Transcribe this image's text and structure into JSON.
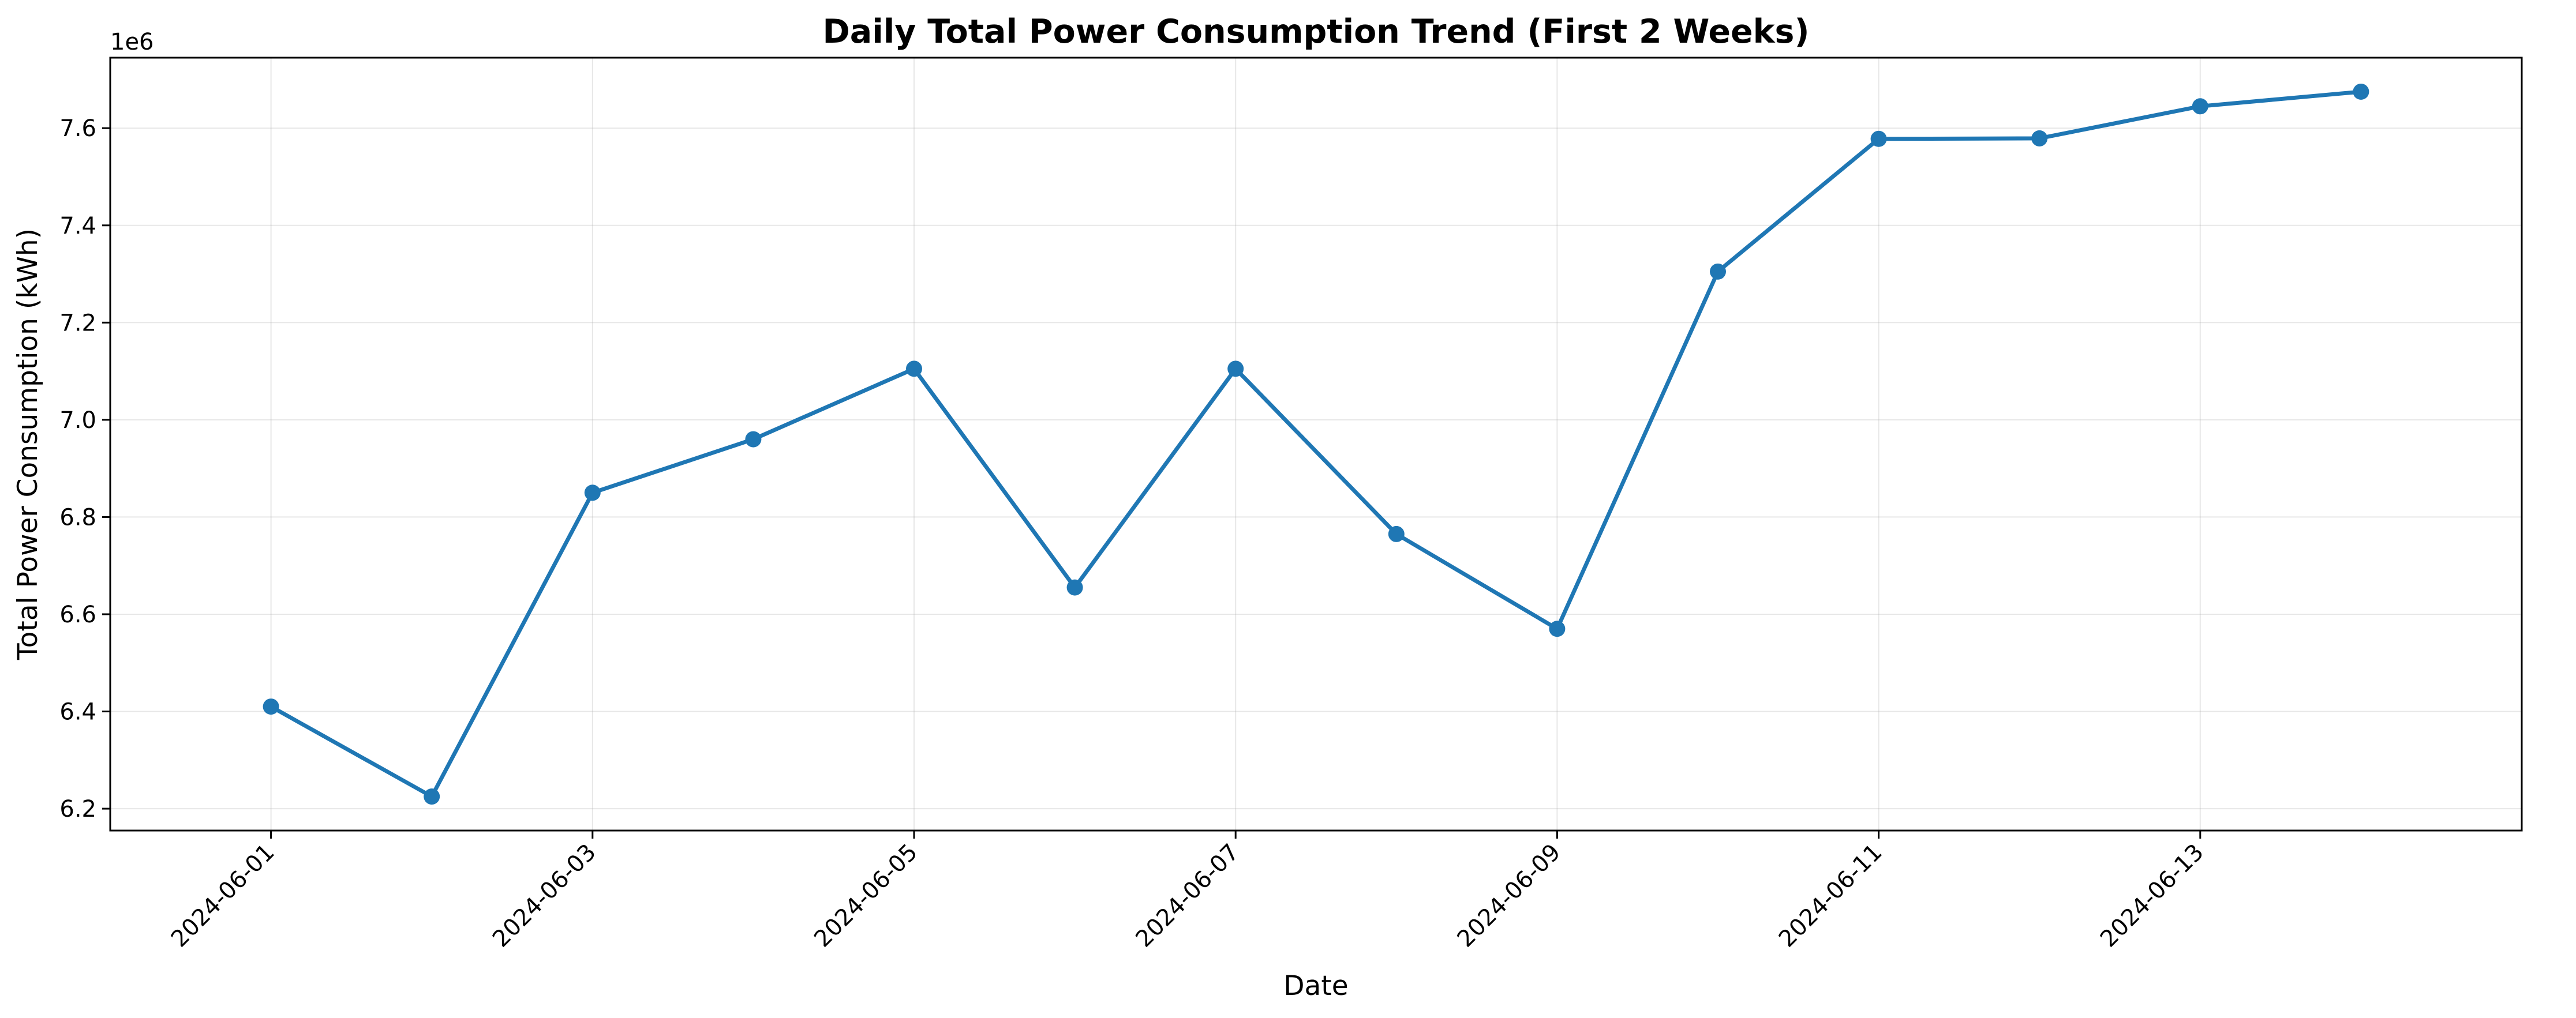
{
  "chart_data": {
    "type": "line",
    "title": "Daily Total Power Consumption Trend (First 2 Weeks)",
    "xlabel": "Date",
    "ylabel": "Total Power Consumption (kWh)",
    "y_offset_label": "1e6",
    "x": [
      "2024-06-01",
      "2024-06-02",
      "2024-06-03",
      "2024-06-04",
      "2024-06-05",
      "2024-06-06",
      "2024-06-07",
      "2024-06-08",
      "2024-06-09",
      "2024-06-10",
      "2024-06-11",
      "2024-06-12",
      "2024-06-13",
      "2024-06-14"
    ],
    "series": [
      {
        "values": [
          6410000,
          6225000,
          6850000,
          6960000,
          7105000,
          6655000,
          7105000,
          6765000,
          6570000,
          7305000,
          7578000,
          7579000,
          7645000,
          7675000
        ],
        "color": "#1f77b4"
      }
    ],
    "xlim": [
      "2024-05-31",
      "2024-06-15"
    ],
    "ylim": [
      6155000,
      7745000
    ],
    "x_ticks": [
      "2024-06-01",
      "2024-06-03",
      "2024-06-05",
      "2024-06-07",
      "2024-06-09",
      "2024-06-11",
      "2024-06-13"
    ],
    "y_ticks": [
      6200000,
      6400000,
      6600000,
      6800000,
      7000000,
      7200000,
      7400000,
      7600000
    ],
    "y_tick_labels": [
      "6.2",
      "6.4",
      "6.6",
      "6.8",
      "7.0",
      "7.2",
      "7.4",
      "7.6"
    ],
    "grid": true,
    "legend": "none"
  }
}
